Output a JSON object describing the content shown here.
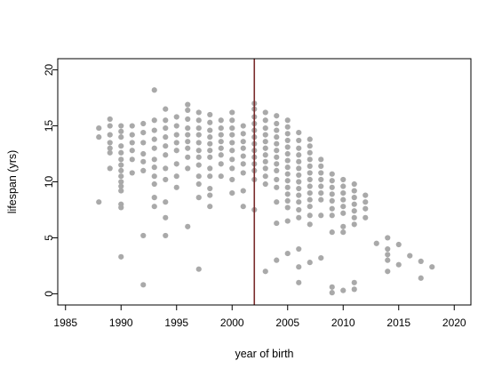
{
  "chart_data": {
    "type": "scatter",
    "title": "",
    "xlabel": "year of birth",
    "ylabel": "lifespan (yrs)",
    "xlim": [
      1984.3,
      2021.5
    ],
    "ylim": [
      -1,
      21
    ],
    "xticks": [
      1985,
      1990,
      1995,
      2000,
      2005,
      2010,
      2015,
      2020
    ],
    "yticks": [
      0,
      5,
      10,
      15,
      20
    ],
    "point_color": "#a9a9a9",
    "vline": {
      "x": 2002,
      "color": "#7b2d2d"
    },
    "grid": false,
    "legend": "none",
    "series": [
      {
        "points": [
          [
            1988,
            8.2
          ],
          [
            1988,
            14
          ],
          [
            1988,
            14.8
          ],
          [
            1989,
            15.6
          ],
          [
            1989,
            15
          ],
          [
            1989,
            14.2
          ],
          [
            1989,
            13.5
          ],
          [
            1989,
            13
          ],
          [
            1989,
            12.6
          ],
          [
            1989,
            11.2
          ],
          [
            1990,
            15
          ],
          [
            1990,
            14.5
          ],
          [
            1990,
            14
          ],
          [
            1990,
            13.2
          ],
          [
            1990,
            12.6
          ],
          [
            1990,
            12
          ],
          [
            1990,
            11.5
          ],
          [
            1990,
            11
          ],
          [
            1990,
            10.5
          ],
          [
            1990,
            10
          ],
          [
            1990,
            9.6
          ],
          [
            1990,
            9.2
          ],
          [
            1990,
            8
          ],
          [
            1990,
            7.7
          ],
          [
            1990,
            3.3
          ],
          [
            1991,
            15
          ],
          [
            1991,
            14.2
          ],
          [
            1991,
            13.5
          ],
          [
            1991,
            12.8
          ],
          [
            1991,
            12
          ],
          [
            1991,
            10.8
          ],
          [
            1992,
            15.2
          ],
          [
            1992,
            14.4
          ],
          [
            1992,
            13.5
          ],
          [
            1992,
            12.5
          ],
          [
            1992,
            11.8
          ],
          [
            1992,
            11
          ],
          [
            1992,
            5.2
          ],
          [
            1992,
            0.8
          ],
          [
            1993,
            18.2
          ],
          [
            1993,
            15.5
          ],
          [
            1993,
            14.6
          ],
          [
            1993,
            13.8
          ],
          [
            1993,
            13
          ],
          [
            1993,
            12
          ],
          [
            1993,
            11.3
          ],
          [
            1993,
            10.5
          ],
          [
            1993,
            9.8
          ],
          [
            1993,
            8.6
          ],
          [
            1993,
            7.8
          ],
          [
            1994,
            16.5
          ],
          [
            1994,
            15.5
          ],
          [
            1994,
            14.8
          ],
          [
            1994,
            14
          ],
          [
            1994,
            13.2
          ],
          [
            1994,
            12.4
          ],
          [
            1994,
            11.2
          ],
          [
            1994,
            10.2
          ],
          [
            1994,
            8.2
          ],
          [
            1994,
            6.8
          ],
          [
            1994,
            5.2
          ],
          [
            1995,
            15.8
          ],
          [
            1995,
            15
          ],
          [
            1995,
            14.2
          ],
          [
            1995,
            13.5
          ],
          [
            1995,
            12.8
          ],
          [
            1995,
            11.6
          ],
          [
            1995,
            10.5
          ],
          [
            1995,
            9.5
          ],
          [
            1996,
            16.9
          ],
          [
            1996,
            16.4
          ],
          [
            1996,
            15.6
          ],
          [
            1996,
            14.8
          ],
          [
            1996,
            14.2
          ],
          [
            1996,
            13.6
          ],
          [
            1996,
            13
          ],
          [
            1996,
            12.2
          ],
          [
            1996,
            11.2
          ],
          [
            1996,
            6
          ],
          [
            1997,
            16.2
          ],
          [
            1997,
            15.5
          ],
          [
            1997,
            14.8
          ],
          [
            1997,
            14.2
          ],
          [
            1997,
            13.5
          ],
          [
            1997,
            12.8
          ],
          [
            1997,
            12.2
          ],
          [
            1997,
            11.5
          ],
          [
            1997,
            10.5
          ],
          [
            1997,
            9.8
          ],
          [
            1997,
            8.6
          ],
          [
            1997,
            2.2
          ],
          [
            1998,
            16
          ],
          [
            1998,
            15.3
          ],
          [
            1998,
            14.6
          ],
          [
            1998,
            14
          ],
          [
            1998,
            13.4
          ],
          [
            1998,
            12.8
          ],
          [
            1998,
            12.2
          ],
          [
            1998,
            11.2
          ],
          [
            1998,
            10.5
          ],
          [
            1998,
            9.4
          ],
          [
            1998,
            8.8
          ],
          [
            1998,
            7.8
          ],
          [
            1999,
            15.5
          ],
          [
            1999,
            14.8
          ],
          [
            1999,
            14.2
          ],
          [
            1999,
            13.6
          ],
          [
            1999,
            13
          ],
          [
            1999,
            12.4
          ],
          [
            1999,
            11.6
          ],
          [
            1999,
            10.5
          ],
          [
            2000,
            16.2
          ],
          [
            2000,
            15.5
          ],
          [
            2000,
            14.8
          ],
          [
            2000,
            14.2
          ],
          [
            2000,
            13.5
          ],
          [
            2000,
            12.8
          ],
          [
            2000,
            12
          ],
          [
            2000,
            11.2
          ],
          [
            2000,
            10.2
          ],
          [
            2000,
            9
          ],
          [
            2001,
            15
          ],
          [
            2001,
            14.3
          ],
          [
            2001,
            13.6
          ],
          [
            2001,
            13
          ],
          [
            2001,
            12.3
          ],
          [
            2001,
            11.6
          ],
          [
            2001,
            10.8
          ],
          [
            2001,
            9.2
          ],
          [
            2001,
            7.8
          ],
          [
            2002,
            17
          ],
          [
            2002,
            16.5
          ],
          [
            2002,
            15.8
          ],
          [
            2002,
            15.2
          ],
          [
            2002,
            14.6
          ],
          [
            2002,
            14
          ],
          [
            2002,
            13.4
          ],
          [
            2002,
            12.8
          ],
          [
            2002,
            12.2
          ],
          [
            2002,
            11.6
          ],
          [
            2002,
            11
          ],
          [
            2002,
            10.2
          ],
          [
            2002,
            7.5
          ],
          [
            2003,
            16.2
          ],
          [
            2003,
            15.5
          ],
          [
            2003,
            14.8
          ],
          [
            2003,
            14.2
          ],
          [
            2003,
            13.6
          ],
          [
            2003,
            13
          ],
          [
            2003,
            12.4
          ],
          [
            2003,
            11.8
          ],
          [
            2003,
            11.2
          ],
          [
            2003,
            10.5
          ],
          [
            2003,
            9.8
          ],
          [
            2003,
            2
          ],
          [
            2004,
            15.9
          ],
          [
            2004,
            15.2
          ],
          [
            2004,
            14.6
          ],
          [
            2004,
            14
          ],
          [
            2004,
            13.4
          ],
          [
            2004,
            12.8
          ],
          [
            2004,
            12.2
          ],
          [
            2004,
            11.6
          ],
          [
            2004,
            11
          ],
          [
            2004,
            10.2
          ],
          [
            2004,
            9.5
          ],
          [
            2004,
            8.2
          ],
          [
            2004,
            6.3
          ],
          [
            2004,
            3
          ],
          [
            2005,
            15.5
          ],
          [
            2005,
            14.9
          ],
          [
            2005,
            14.3
          ],
          [
            2005,
            13.7
          ],
          [
            2005,
            13.1
          ],
          [
            2005,
            12.5
          ],
          [
            2005,
            11.9
          ],
          [
            2005,
            11.3
          ],
          [
            2005,
            10.7
          ],
          [
            2005,
            10.1
          ],
          [
            2005,
            9.5
          ],
          [
            2005,
            8.9
          ],
          [
            2005,
            8.3
          ],
          [
            2005,
            7.7
          ],
          [
            2005,
            6.5
          ],
          [
            2005,
            3.6
          ],
          [
            2006,
            14.4
          ],
          [
            2006,
            13.7
          ],
          [
            2006,
            13
          ],
          [
            2006,
            12.4
          ],
          [
            2006,
            11.8
          ],
          [
            2006,
            11.2
          ],
          [
            2006,
            10.6
          ],
          [
            2006,
            10
          ],
          [
            2006,
            9.4
          ],
          [
            2006,
            8.8
          ],
          [
            2006,
            8.2
          ],
          [
            2006,
            7.5
          ],
          [
            2006,
            6.8
          ],
          [
            2006,
            4
          ],
          [
            2006,
            2.4
          ],
          [
            2006,
            1
          ],
          [
            2007,
            13.8
          ],
          [
            2007,
            13.2
          ],
          [
            2007,
            12.6
          ],
          [
            2007,
            12
          ],
          [
            2007,
            11.4
          ],
          [
            2007,
            10.8
          ],
          [
            2007,
            10.2
          ],
          [
            2007,
            9.6
          ],
          [
            2007,
            9
          ],
          [
            2007,
            8.4
          ],
          [
            2007,
            7.8
          ],
          [
            2007,
            7
          ],
          [
            2007,
            6.2
          ],
          [
            2007,
            2.8
          ],
          [
            2008,
            12
          ],
          [
            2008,
            11.4
          ],
          [
            2008,
            10.8
          ],
          [
            2008,
            10.2
          ],
          [
            2008,
            9.6
          ],
          [
            2008,
            9
          ],
          [
            2008,
            8.4
          ],
          [
            2008,
            7
          ],
          [
            2008,
            3.2
          ],
          [
            2009,
            10.7
          ],
          [
            2009,
            10.1
          ],
          [
            2009,
            9.5
          ],
          [
            2009,
            8.9
          ],
          [
            2009,
            8.3
          ],
          [
            2009,
            7.6
          ],
          [
            2009,
            7
          ],
          [
            2009,
            5.5
          ],
          [
            2009,
            0.6
          ],
          [
            2009,
            0.1
          ],
          [
            2010,
            10.2
          ],
          [
            2010,
            9.6
          ],
          [
            2010,
            9
          ],
          [
            2010,
            8.4
          ],
          [
            2010,
            7.8
          ],
          [
            2010,
            7.2
          ],
          [
            2010,
            6
          ],
          [
            2010,
            5.5
          ],
          [
            2010,
            0.3
          ],
          [
            2011,
            9.8
          ],
          [
            2011,
            9.2
          ],
          [
            2011,
            8.6
          ],
          [
            2011,
            8
          ],
          [
            2011,
            7.4
          ],
          [
            2011,
            6.8
          ],
          [
            2011,
            6.2
          ],
          [
            2011,
            1
          ],
          [
            2011,
            0.4
          ],
          [
            2012,
            8.8
          ],
          [
            2012,
            8.2
          ],
          [
            2012,
            7.6
          ],
          [
            2012,
            6.8
          ],
          [
            2013,
            4.5
          ],
          [
            2014,
            5
          ],
          [
            2014,
            4
          ],
          [
            2014,
            3.5
          ],
          [
            2014,
            3
          ],
          [
            2014,
            2
          ],
          [
            2015,
            4.4
          ],
          [
            2015,
            2.6
          ],
          [
            2016,
            3.4
          ],
          [
            2017,
            2.9
          ],
          [
            2017,
            1.4
          ],
          [
            2018,
            2.4
          ]
        ]
      }
    ]
  }
}
